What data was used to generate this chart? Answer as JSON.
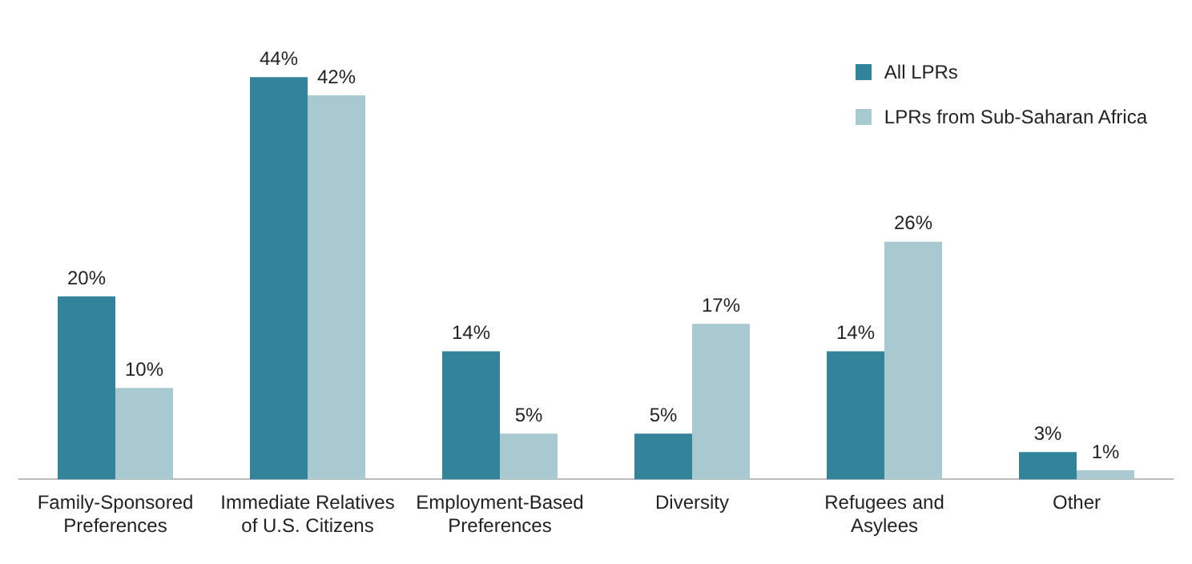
{
  "chart_data": {
    "type": "bar",
    "categories": [
      "Family-Sponsored Preferences",
      "Immediate Relatives of U.S. Citizens",
      "Employment-Based Preferences",
      "Diversity",
      "Refugees and Asylees",
      "Other"
    ],
    "series": [
      {
        "name": "All LPRs",
        "color": "#33849a",
        "values": [
          20,
          44,
          14,
          5,
          14,
          3
        ],
        "value_labels": [
          "20%",
          "44%",
          "14%",
          "5%",
          "14%",
          "3%"
        ]
      },
      {
        "name": "LPRs from Sub-Saharan Africa",
        "color": "#a9c9d1",
        "values": [
          10,
          42,
          5,
          17,
          26,
          1
        ],
        "value_labels": [
          "10%",
          "42%",
          "5%",
          "17%",
          "26%",
          "1%"
        ]
      }
    ],
    "legend": "top right",
    "grid": false
  }
}
